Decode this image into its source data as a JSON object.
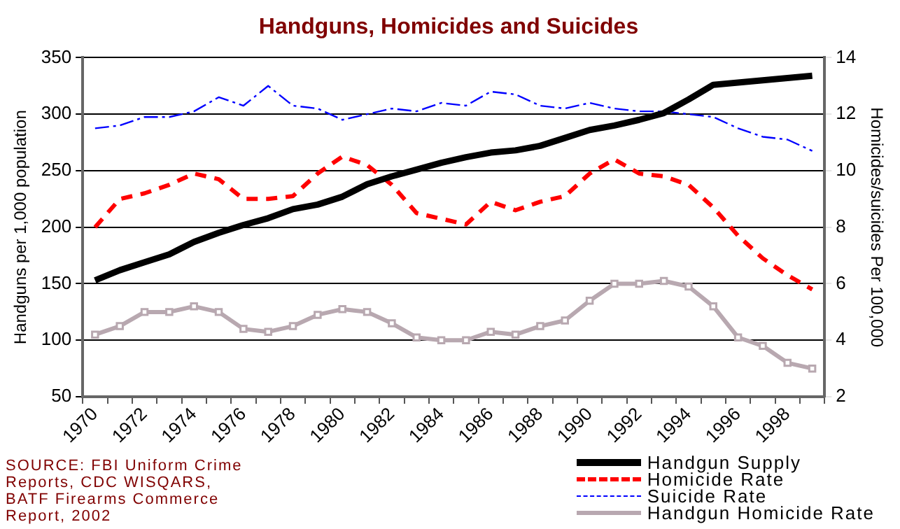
{
  "chart_data": {
    "type": "line",
    "title": "Handguns, Homicides and Suicides",
    "ylabel": "Handguns per 1,000 population",
    "y2label": "Homicides/suicides Per 100,000",
    "categories": [
      "1970",
      null,
      "1972",
      null,
      "1974",
      null,
      "1976",
      null,
      "1978",
      null,
      "1980",
      null,
      "1982",
      null,
      "1984",
      null,
      "1986",
      null,
      "1988",
      null,
      "1990",
      null,
      "1992",
      null,
      "1994",
      null,
      "1996",
      null,
      "1998",
      null
    ],
    "ylim": [
      50,
      350
    ],
    "yticks": [
      50,
      100,
      150,
      200,
      250,
      300,
      350
    ],
    "y2lim": [
      2,
      14
    ],
    "y2ticks": [
      2,
      4,
      6,
      8,
      10,
      12,
      14
    ],
    "grid": "y",
    "legend": "bottom right",
    "annotations": [
      "SOURCE: FBI Uniform Crime Reports, CDC WISQARS, BATF Firearms Commerce Report, 2002"
    ],
    "series": [
      {
        "name": "Handgun Supply",
        "color": "#000000",
        "line_style": "solid",
        "marker": "none",
        "values": [
          153,
          162,
          169,
          176,
          187,
          195,
          202,
          208,
          216,
          220,
          227,
          238,
          245,
          251,
          257,
          262,
          266,
          268,
          272,
          279,
          286,
          290,
          295,
          301,
          313,
          326,
          328,
          330,
          332,
          334
        ]
      },
      {
        "name": "Homicide Rate",
        "color": "#ff0000",
        "axis": "y2",
        "line_style": "dashed",
        "marker": "none",
        "values": [
          8.0,
          9.0,
          9.2,
          9.5,
          9.9,
          9.7,
          9.0,
          9.0,
          9.1,
          9.9,
          10.5,
          10.2,
          9.5,
          8.5,
          8.3,
          8.1,
          8.9,
          8.6,
          8.9,
          9.1,
          9.9,
          10.4,
          9.9,
          9.8,
          9.5,
          8.7,
          7.7,
          6.9,
          6.3,
          5.8
        ]
      },
      {
        "name": "Suicide Rate",
        "color": "#0000ff",
        "axis": "y2",
        "line_style": "dashdot",
        "marker": "none",
        "values": [
          11.5,
          11.6,
          11.9,
          11.9,
          12.1,
          12.6,
          12.3,
          13.0,
          12.3,
          12.2,
          11.8,
          12.0,
          12.2,
          12.1,
          12.4,
          12.3,
          12.8,
          12.7,
          12.3,
          12.2,
          12.4,
          12.2,
          12.1,
          12.1,
          12.0,
          11.9,
          11.5,
          11.2,
          11.1,
          10.7
        ]
      },
      {
        "name": "Handgun Homicide Rate",
        "color": "#b8a8b0",
        "axis": "y2",
        "line_style": "solid",
        "marker": "square",
        "values": [
          4.2,
          4.5,
          5.0,
          5.0,
          5.2,
          5.0,
          4.4,
          4.3,
          4.5,
          4.9,
          5.1,
          5.0,
          4.6,
          4.1,
          4.0,
          4.0,
          4.3,
          4.2,
          4.5,
          4.7,
          5.4,
          6.0,
          6.0,
          6.1,
          5.9,
          5.2,
          4.1,
          3.8,
          3.2,
          3.0
        ]
      }
    ]
  }
}
